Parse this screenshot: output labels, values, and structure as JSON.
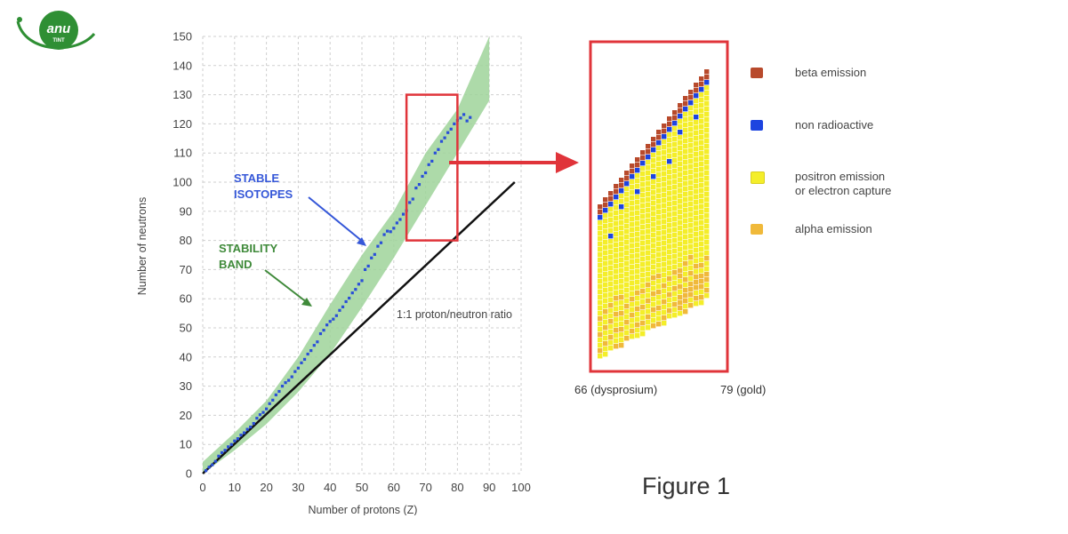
{
  "logo": {
    "text": "anu",
    "subtext": "TINT"
  },
  "figure": {
    "caption": "Figure 1"
  },
  "colors": {
    "stability_band": "#9fd39a",
    "stable_isotopes": "#2a4fd8",
    "one_to_one_line": "#111111",
    "highlight_box": "#e0343a",
    "beta_emission": "#b84a2c",
    "non_radioactive": "#1d44e0",
    "positron_emission": "#f4ee2a",
    "alpha_emission": "#f0b93a",
    "stable_text": "#3557d8",
    "band_text": "#3f8a3a"
  },
  "chart_data": [
    {
      "type": "scatter",
      "title": "",
      "xlabel": "Number of protons (Z)",
      "ylabel": "Number of neutrons",
      "xlim": [
        0,
        100
      ],
      "ylim": [
        0,
        150
      ],
      "xticks": [
        0,
        10,
        20,
        30,
        40,
        50,
        60,
        70,
        80,
        90,
        100
      ],
      "yticks": [
        0,
        10,
        20,
        30,
        40,
        50,
        60,
        70,
        80,
        90,
        100,
        110,
        120,
        130,
        140,
        150
      ],
      "grid": true,
      "series": [
        {
          "name": "STABLE ISOTOPES",
          "kind": "points",
          "x": [
            1,
            3,
            5,
            7,
            9,
            11,
            13,
            15,
            17,
            19,
            21,
            23,
            25,
            27,
            29,
            31,
            33,
            35,
            37,
            39,
            41,
            43,
            45,
            47,
            49,
            51,
            53,
            55,
            57,
            59,
            61,
            63,
            65,
            67,
            69,
            71,
            73,
            75,
            77,
            79,
            81,
            83
          ],
          "y": [
            1,
            3,
            6,
            8,
            10,
            12,
            14,
            16,
            19,
            21,
            24,
            27,
            30,
            32,
            35,
            38,
            41,
            44,
            48,
            51,
            53,
            56,
            59,
            62,
            65,
            70,
            74,
            78,
            82,
            83,
            86,
            89,
            93,
            98,
            102,
            106,
            110,
            114,
            117,
            120,
            122,
            121
          ]
        },
        {
          "name": "STABILITY BAND",
          "kind": "band",
          "x": [
            0,
            10,
            20,
            30,
            40,
            50,
            60,
            70,
            80,
            90
          ],
          "y_low": [
            0,
            8,
            17,
            28,
            41,
            57,
            74,
            92,
            110,
            128
          ],
          "y_high": [
            4,
            14,
            25,
            40,
            58,
            75,
            90,
            110,
            125,
            150
          ]
        },
        {
          "name": "1:1 proton/neutron ratio",
          "kind": "line",
          "x": [
            0,
            98
          ],
          "y": [
            0,
            100
          ]
        }
      ],
      "annotations": [
        {
          "text": "STABLE\nISOTOPES",
          "target": "stable-isotopes"
        },
        {
          "text": "STABILITY\nBAND",
          "target": "stability-band"
        },
        {
          "text": "1:1 proton/neutron ratio",
          "target": "one-to-one-line"
        }
      ],
      "highlight_region": {
        "x": [
          64,
          80
        ],
        "y": [
          80,
          130
        ]
      }
    },
    {
      "type": "heatmap",
      "title": "",
      "x_range_labels": [
        "66 (dysprosium)",
        "79 (gold)"
      ],
      "categories": [
        "beta emission",
        "non radioactive",
        "positron emission\nor electron capture",
        "alpha emission"
      ],
      "legend_position": "right"
    }
  ]
}
